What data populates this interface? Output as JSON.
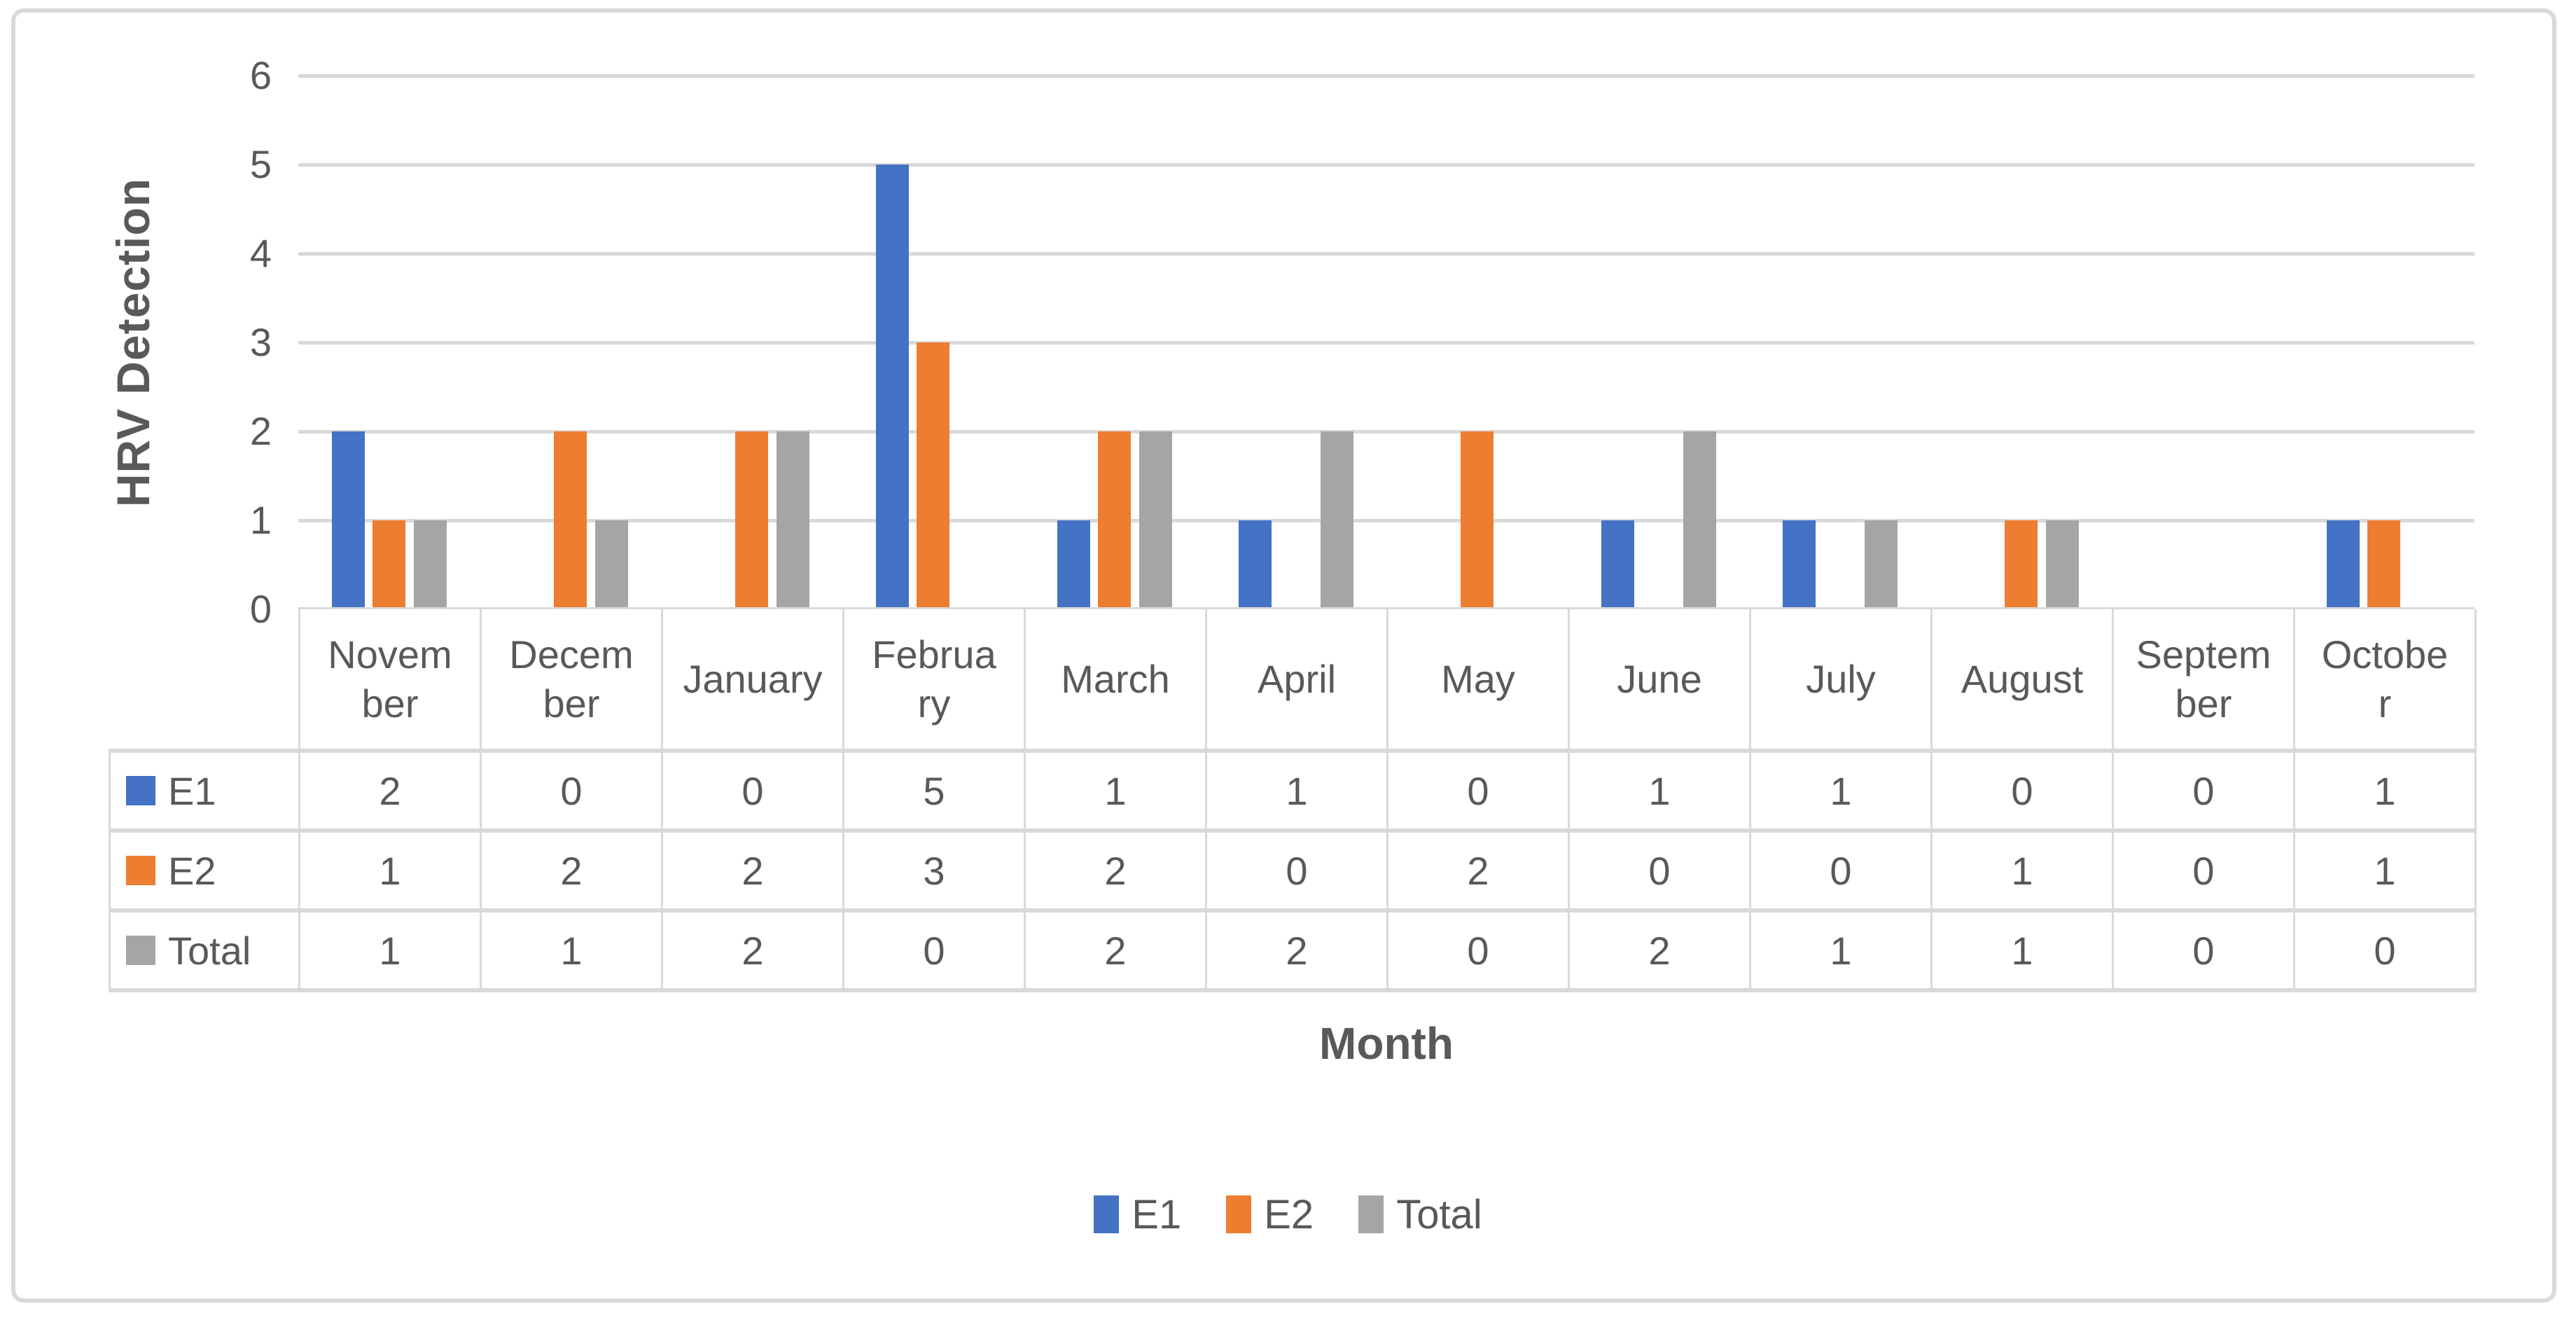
{
  "chart_data": {
    "type": "bar",
    "title": "",
    "xlabel": "Month",
    "ylabel": "HRV Detection",
    "ylim": [
      0,
      6
    ],
    "yticks": [
      0,
      1,
      2,
      3,
      4,
      5,
      6
    ],
    "grid": true,
    "legend_position": "bottom",
    "categories": [
      "November",
      "December",
      "January",
      "February",
      "March",
      "April",
      "May",
      "June",
      "July",
      "August",
      "September",
      "October"
    ],
    "categories_display": [
      "Novem\nber",
      "Decem\nber",
      "January",
      "Februa\nry",
      "March",
      "April",
      "May",
      "June",
      "July",
      "August",
      "Septem\nber",
      "Octobe\nr"
    ],
    "series": [
      {
        "name": "E1",
        "color": "#4472C4",
        "values": [
          2,
          0,
          0,
          5,
          1,
          1,
          0,
          1,
          1,
          0,
          0,
          1
        ]
      },
      {
        "name": "E2",
        "color": "#ED7D31",
        "values": [
          1,
          2,
          2,
          3,
          2,
          0,
          2,
          0,
          0,
          1,
          0,
          1
        ]
      },
      {
        "name": "Total",
        "color": "#A5A5A5",
        "values": [
          1,
          1,
          2,
          0,
          2,
          2,
          0,
          2,
          1,
          1,
          0,
          0
        ]
      }
    ]
  },
  "colors": {
    "e1": "#4472C4",
    "e2": "#ED7D31",
    "total": "#A5A5A5",
    "gridline": "#D9D9D9",
    "text": "#595959",
    "background": "#FFFFFF"
  },
  "legend": {
    "labels": [
      "E1",
      "E2",
      "Total"
    ]
  }
}
